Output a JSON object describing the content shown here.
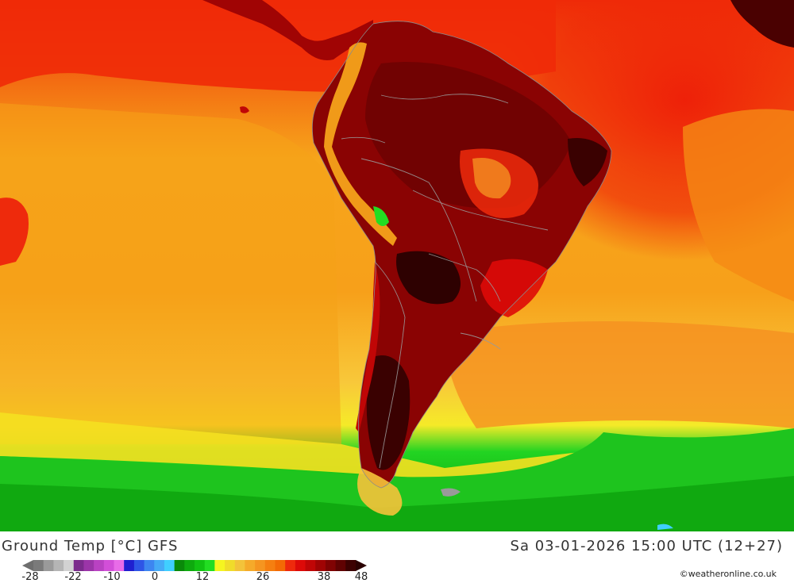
{
  "map": {
    "title": "Ground Temp [°C] GFS",
    "valid_time": "Sa 03-01-2026 15:00 UTC (12+27)",
    "credit": "©weatheronline.co.uk",
    "region": "South America",
    "legend": {
      "tick_labels": [
        "-28",
        "-22",
        "-10",
        "0",
        "12",
        "26",
        "38",
        "48"
      ],
      "colors": [
        "#7a7a7a",
        "#9a9a9a",
        "#b5b5b5",
        "#d2d2d2",
        "#7b2b8c",
        "#9b35a8",
        "#b942c2",
        "#d24fd8",
        "#e86ce8",
        "#1f1fd0",
        "#2e55e6",
        "#3d86f0",
        "#45aaf6",
        "#40cfff",
        "#0a8a0a",
        "#0eaa0e",
        "#12c212",
        "#22dd22",
        "#f5f520",
        "#f0dc2a",
        "#f3c33a",
        "#f5aa2a",
        "#f59520",
        "#f57f10",
        "#f36a05",
        "#ee2a0c",
        "#dd0a08",
        "#c00606",
        "#a00404",
        "#800303",
        "#600202",
        "#3c0101"
      ]
    }
  }
}
